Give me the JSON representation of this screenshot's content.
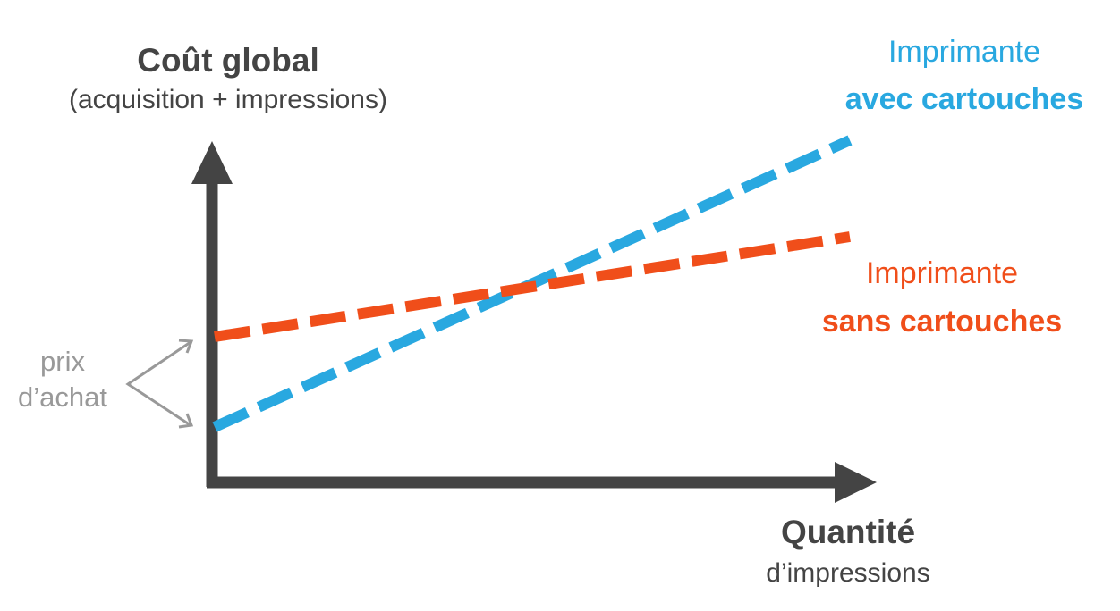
{
  "y_axis": {
    "title": "Coût global",
    "subtitle": "(acquisition + impressions)"
  },
  "x_axis": {
    "title": "Quantité",
    "subtitle": "d’impressions"
  },
  "lines": [
    {
      "label_top": "Imprimante",
      "label_bold": "avec cartouches",
      "color": "#29a8e0"
    },
    {
      "label_top": "Imprimante",
      "label_bold": "sans cartouches",
      "color": "#f04e1a"
    }
  ],
  "annotation": {
    "lines": [
      "prix",
      "d’achat"
    ]
  }
}
